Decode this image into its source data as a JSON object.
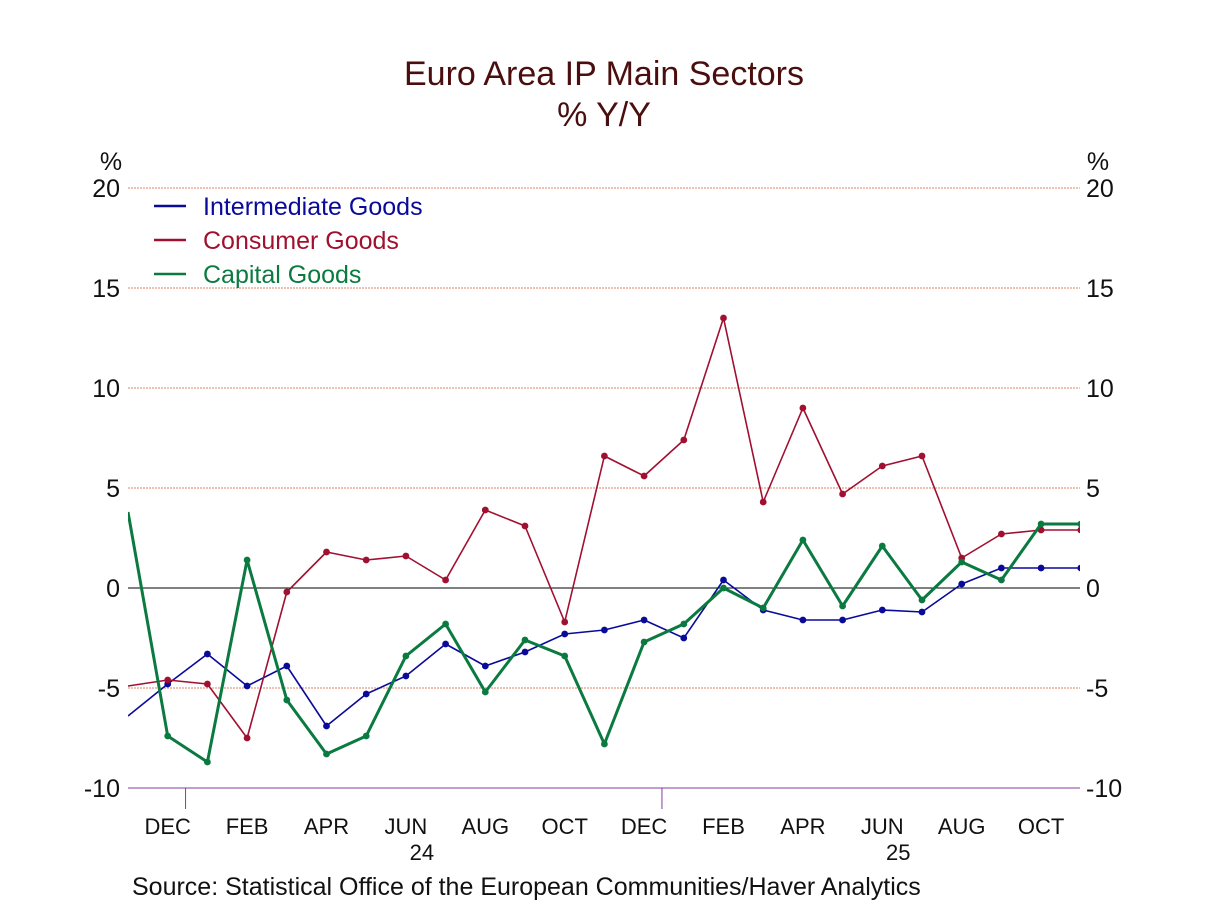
{
  "chart_data": {
    "type": "line",
    "title": "Euro Area IP Main Sectors",
    "subtitle": "% Y/Y",
    "ylabel_left": "%",
    "ylabel_right": "%",
    "ylim": [
      -10,
      20
    ],
    "yticks": [
      20,
      15,
      10,
      5,
      0,
      -5,
      -10
    ],
    "x": [
      "2023-11",
      "2023-12",
      "2024-01",
      "2024-02",
      "2024-03",
      "2024-04",
      "2024-05",
      "2024-06",
      "2024-07",
      "2024-08",
      "2024-09",
      "2024-10",
      "2024-11",
      "2024-12",
      "2025-01",
      "2025-02",
      "2025-03",
      "2025-04",
      "2025-05",
      "2025-06",
      "2025-07",
      "2025-08",
      "2025-09",
      "2025-10",
      "2025-11"
    ],
    "month_ticks": [
      {
        "label": "DEC",
        "index": 1
      },
      {
        "label": "FEB",
        "index": 3
      },
      {
        "label": "APR",
        "index": 5
      },
      {
        "label": "JUN",
        "index": 7
      },
      {
        "label": "AUG",
        "index": 9
      },
      {
        "label": "OCT",
        "index": 11
      },
      {
        "label": "DEC",
        "index": 13
      },
      {
        "label": "FEB",
        "index": 15
      },
      {
        "label": "APR",
        "index": 17
      },
      {
        "label": "JUN",
        "index": 19
      },
      {
        "label": "AUG",
        "index": 21
      },
      {
        "label": "OCT",
        "index": 23
      }
    ],
    "year_labels": [
      {
        "label": "24",
        "index": 7
      },
      {
        "label": "25",
        "index": 19
      }
    ],
    "year_dividers": [
      1,
      13
    ],
    "series": [
      {
        "name": "Intermediate Goods",
        "color": "#0a0a9a",
        "values": [
          -6.4,
          -4.8,
          -3.3,
          -4.9,
          -3.9,
          -6.9,
          -5.3,
          -4.4,
          -2.8,
          -3.9,
          -3.2,
          -2.3,
          -2.1,
          -1.6,
          -2.5,
          0.4,
          -1.1,
          -1.6,
          -1.6,
          -1.1,
          -1.2,
          0.2,
          1.0,
          1.0,
          1.0
        ]
      },
      {
        "name": "Consumer Goods",
        "color": "#a01030",
        "values": [
          -4.9,
          -4.6,
          -4.8,
          -7.5,
          -0.2,
          1.8,
          1.4,
          1.6,
          0.4,
          3.9,
          3.1,
          -1.7,
          6.6,
          5.6,
          7.4,
          13.5,
          4.3,
          9.0,
          4.7,
          6.1,
          6.6,
          1.5,
          2.7,
          2.9,
          2.9
        ]
      },
      {
        "name": "Capital Goods",
        "color": "#0a7a40",
        "values": [
          3.8,
          -7.4,
          -8.7,
          1.4,
          -5.6,
          -8.3,
          -7.4,
          -3.4,
          -1.8,
          -5.2,
          -2.6,
          -3.4,
          -7.8,
          -2.7,
          -1.8,
          0.0,
          -1.0,
          2.4,
          -0.9,
          2.1,
          -0.6,
          1.3,
          0.4,
          3.2,
          3.2
        ]
      }
    ],
    "axis_color": "#8a3aa0",
    "grid_color": "#e08060",
    "source": "Source:  Statistical Office of the European Communities/Haver Analytics"
  }
}
